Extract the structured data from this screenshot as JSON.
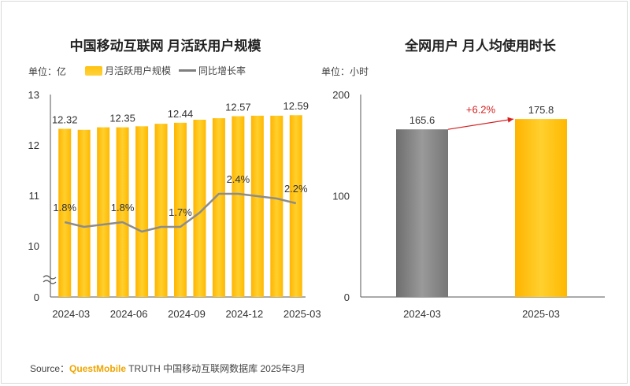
{
  "source": {
    "prefix": "Source：",
    "brand": "QuestMobile",
    "rest": " TRUTH 中国移动互联网数据库 2025年3月"
  },
  "chart_data": [
    {
      "type": "bar",
      "title": "中国移动互联网 月活跃用户规模",
      "unit": "单位：亿",
      "legend": {
        "bar": "月活跃用户规模",
        "line": "同比增长率"
      },
      "y_axis_ticks": [
        "0",
        "10",
        "11",
        "12",
        "13"
      ],
      "ylim": [
        10,
        13
      ],
      "axis_break": true,
      "x_tick_labels": [
        "2024-03",
        "2024-06",
        "2024-09",
        "2024-12",
        "2025-03"
      ],
      "categories": [
        "2024-03",
        "2024-04",
        "2024-05",
        "2024-06",
        "2024-07",
        "2024-08",
        "2024-09",
        "2024-10",
        "2024-11",
        "2024-12",
        "2025-01",
        "2025-02",
        "2025-03"
      ],
      "series": [
        {
          "name": "月活跃用户规模",
          "values": [
            12.32,
            12.3,
            12.35,
            12.35,
            12.37,
            12.42,
            12.44,
            12.5,
            12.53,
            12.57,
            12.58,
            12.58,
            12.59
          ],
          "data_labels": {
            "0": "12.32",
            "3": "12.35",
            "6": "12.44",
            "9": "12.57",
            "12": "12.59"
          },
          "color": "#ffc20e"
        },
        {
          "name": "同比增长率",
          "values": [
            1.8,
            1.7,
            1.75,
            1.8,
            1.6,
            1.7,
            1.7,
            2.0,
            2.4,
            2.4,
            2.35,
            2.3,
            2.2
          ],
          "unit": "%",
          "data_labels": {
            "0": "1.8%",
            "3": "1.8%",
            "6": "1.7%",
            "9": "2.4%",
            "12": "2.2%"
          },
          "color": "#8c8c8c"
        }
      ]
    },
    {
      "type": "bar",
      "title": "全网用户 月人均使用时长",
      "unit": "单位：小时",
      "y_axis_ticks": [
        "0",
        "100",
        "200"
      ],
      "ylim": [
        0,
        200
      ],
      "categories": [
        "2024-03",
        "2025-03"
      ],
      "values": [
        165.6,
        175.8
      ],
      "value_labels": [
        "165.6",
        "175.8"
      ],
      "bar_colors": [
        "#8a8a8a",
        "#ffc20e"
      ],
      "growth_label": "+6.2%",
      "growth_color": "#d42020"
    }
  ]
}
